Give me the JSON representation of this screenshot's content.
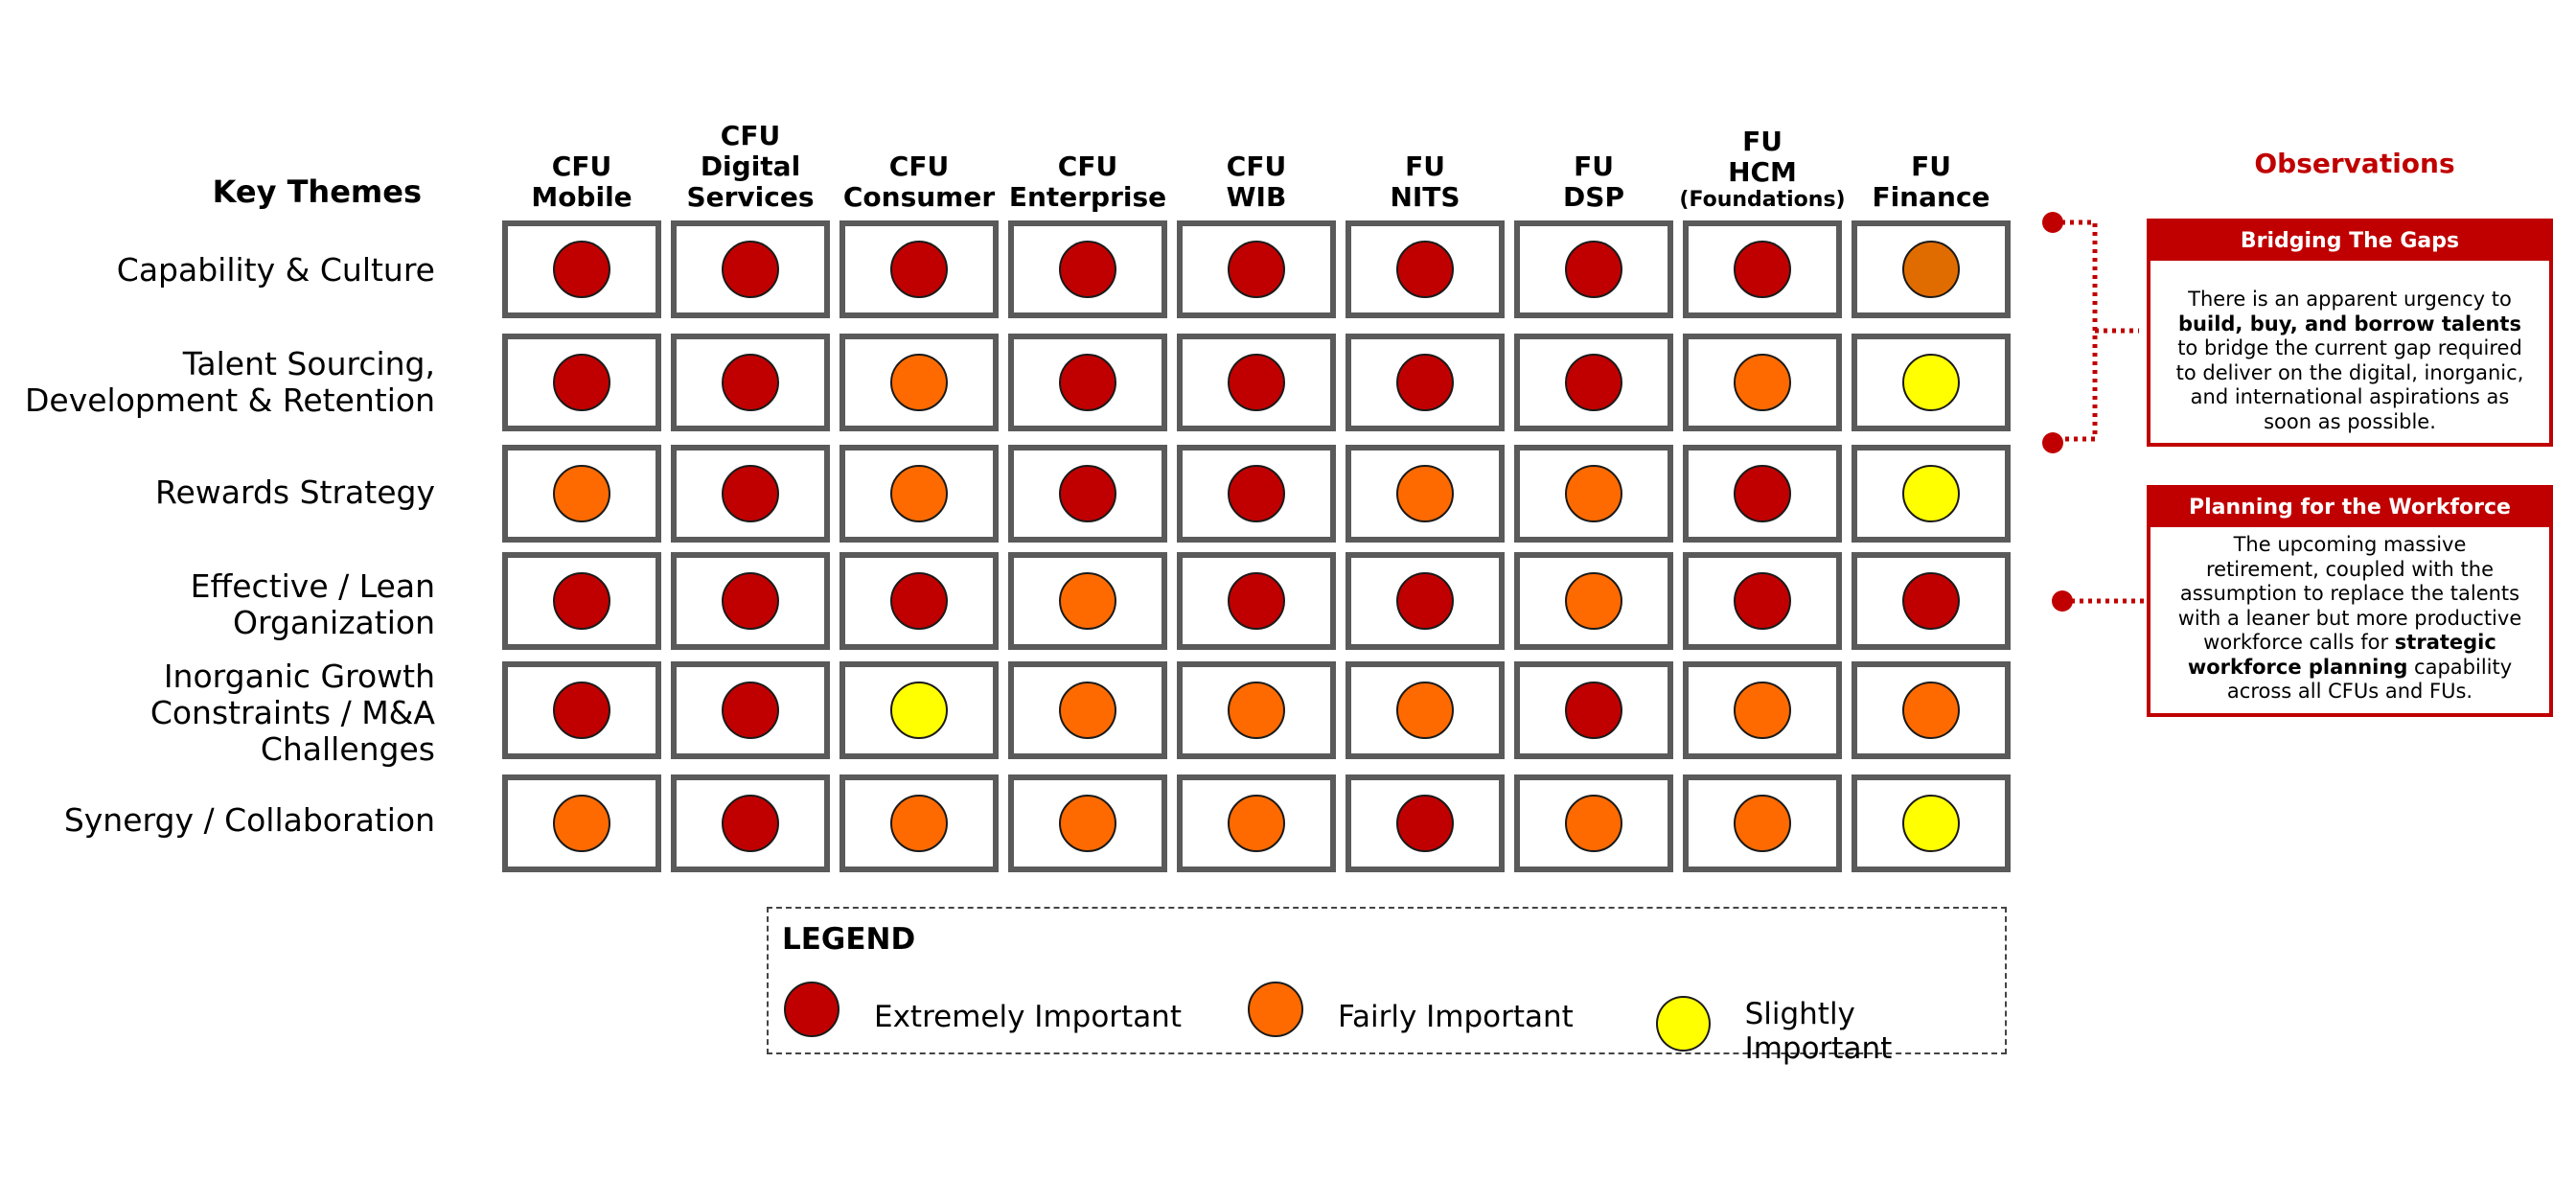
{
  "header": {
    "key_themes": "Key Themes"
  },
  "columns": [
    {
      "line1": "CFU",
      "line2": "Mobile",
      "line3": ""
    },
    {
      "line1": "CFU",
      "line2": "Digital",
      "line3": "Services"
    },
    {
      "line1": "CFU",
      "line2": "Consumer",
      "line3": ""
    },
    {
      "line1": "CFU",
      "line2": "Enterprise",
      "line3": ""
    },
    {
      "line1": "CFU",
      "line2": "WIB",
      "line3": ""
    },
    {
      "line1": "FU",
      "line2": "NITS",
      "line3": ""
    },
    {
      "line1": "FU",
      "line2": "DSP",
      "line3": ""
    },
    {
      "line1": "FU",
      "line2": "HCM",
      "line3": "(Foundations)"
    },
    {
      "line1": "FU",
      "line2": "Finance",
      "line3": ""
    }
  ],
  "rows": [
    {
      "lines": [
        "Capability & Culture"
      ],
      "levels": [
        "extremely",
        "extremely",
        "extremely",
        "extremely",
        "extremely",
        "extremely",
        "extremely",
        "extremely",
        "fairly_dark"
      ]
    },
    {
      "lines": [
        "Talent Sourcing,",
        "Development & Retention"
      ],
      "levels": [
        "extremely",
        "extremely",
        "fairly",
        "extremely",
        "extremely",
        "extremely",
        "extremely",
        "fairly",
        "slightly"
      ]
    },
    {
      "lines": [
        "Rewards Strategy"
      ],
      "levels": [
        "fairly",
        "extremely",
        "fairly",
        "extremely",
        "extremely",
        "fairly",
        "fairly",
        "extremely",
        "slightly"
      ]
    },
    {
      "lines": [
        "Effective / Lean",
        "Organization"
      ],
      "levels": [
        "extremely",
        "extremely",
        "extremely",
        "fairly",
        "extremely",
        "extremely",
        "fairly",
        "extremely",
        "extremely"
      ]
    },
    {
      "lines": [
        "Inorganic Growth",
        "Constraints / M&A",
        "Challenges"
      ],
      "levels": [
        "extremely",
        "extremely",
        "slightly",
        "fairly",
        "fairly",
        "fairly",
        "extremely",
        "fairly",
        "fairly"
      ]
    },
    {
      "lines": [
        "Synergy / Collaboration"
      ],
      "levels": [
        "fairly",
        "extremely",
        "fairly",
        "fairly",
        "fairly",
        "extremely",
        "fairly",
        "fairly",
        "slightly"
      ]
    }
  ],
  "level_colors": {
    "extremely": "#c00000",
    "fairly": "#ff6a00",
    "fairly_dark": "#e06c00",
    "slightly": "#ffff00"
  },
  "legend": {
    "title": "LEGEND",
    "items": [
      {
        "key": "extremely",
        "label": "Extremely Important"
      },
      {
        "key": "fairly",
        "label": "Fairly Important"
      },
      {
        "key": "slightly",
        "label": "Slightly Important"
      }
    ]
  },
  "observations": {
    "title": "Observations",
    "boxes": [
      {
        "heading": "Bridging The Gaps",
        "body": [
          {
            "text": "There is an apparent urgency to",
            "bold": false
          },
          {
            "text": "build, buy, and borrow talents",
            "bold": true
          },
          {
            "text": "to bridge the current gap required",
            "bold": false
          },
          {
            "text": "to deliver on the digital, inorganic,",
            "bold": false
          },
          {
            "text": "and international aspirations as",
            "bold": false
          },
          {
            "text": "soon as possible.",
            "bold": false
          }
        ]
      },
      {
        "heading": "Planning for the Workforce",
        "body": [
          {
            "text": "The upcoming massive",
            "bold": false
          },
          {
            "text": "retirement, coupled with the",
            "bold": false
          },
          {
            "text": "assumption to replace the talents",
            "bold": false
          },
          {
            "text": "with a leaner but more productive",
            "bold": false
          },
          {
            "text": "workforce calls for ",
            "bold": false,
            "bold_tail": "strategic"
          },
          {
            "text": "workforce planning",
            "bold": true,
            "tail": " capability"
          },
          {
            "text": "across all CFUs and FUs.",
            "bold": false
          }
        ]
      }
    ]
  }
}
